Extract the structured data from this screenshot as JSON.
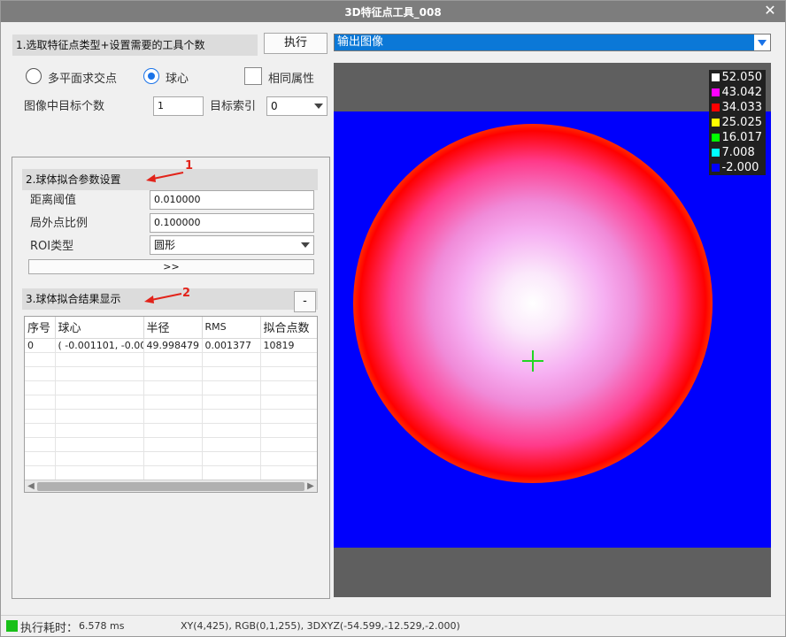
{
  "window": {
    "title": "3D特征点工具_008",
    "close_glyph": "✕"
  },
  "section1": {
    "title": "1.选取特征点类型+设置需要的工具个数",
    "execute_label": "执行"
  },
  "type_options": {
    "opt1": "多平面求交点",
    "opt2": "球心",
    "same_attr": "相同属性",
    "selected": "球心"
  },
  "targets": {
    "count_label": "图像中目标个数",
    "count_value": "1",
    "index_label": "目标索引",
    "index_value": "0"
  },
  "section2": {
    "title": "2.球体拟合参数设置",
    "annotation": "1",
    "distance_label": "距离阈值",
    "distance_value": "0.010000",
    "outlier_label": "局外点比例",
    "outlier_value": "0.100000",
    "roi_label": "ROI类型",
    "roi_value": "圆形",
    "expand_label": ">>"
  },
  "section3": {
    "title": "3.球体拟合结果显示",
    "annotation": "2",
    "collapse_label": "-",
    "columns": [
      "序号",
      "球心",
      "半径",
      "RMS",
      "拟合点数"
    ],
    "rows": [
      [
        "0",
        "( -0.001101, -0.00...",
        "49.998479",
        "0.001377",
        "10819"
      ]
    ]
  },
  "output": {
    "selected": "输出图像"
  },
  "legend": [
    {
      "value": "52.050",
      "color": "#ffffff"
    },
    {
      "value": "43.042",
      "color": "#ff00ff"
    },
    {
      "value": "34.033",
      "color": "#ff0000"
    },
    {
      "value": "25.025",
      "color": "#ffff00"
    },
    {
      "value": "16.017",
      "color": "#00ff00"
    },
    {
      "value": "7.008",
      "color": "#00ffff"
    },
    {
      "value": "-2.000",
      "color": "#0000ff"
    }
  ],
  "status": {
    "exec_label": "执行耗时：",
    "exec_value": "6.578 ms",
    "info": "XY(4,425), RGB(0,1,255), 3DXYZ(-54.599,-12.529,-2.000)",
    "indicator_color": "#18c018"
  }
}
